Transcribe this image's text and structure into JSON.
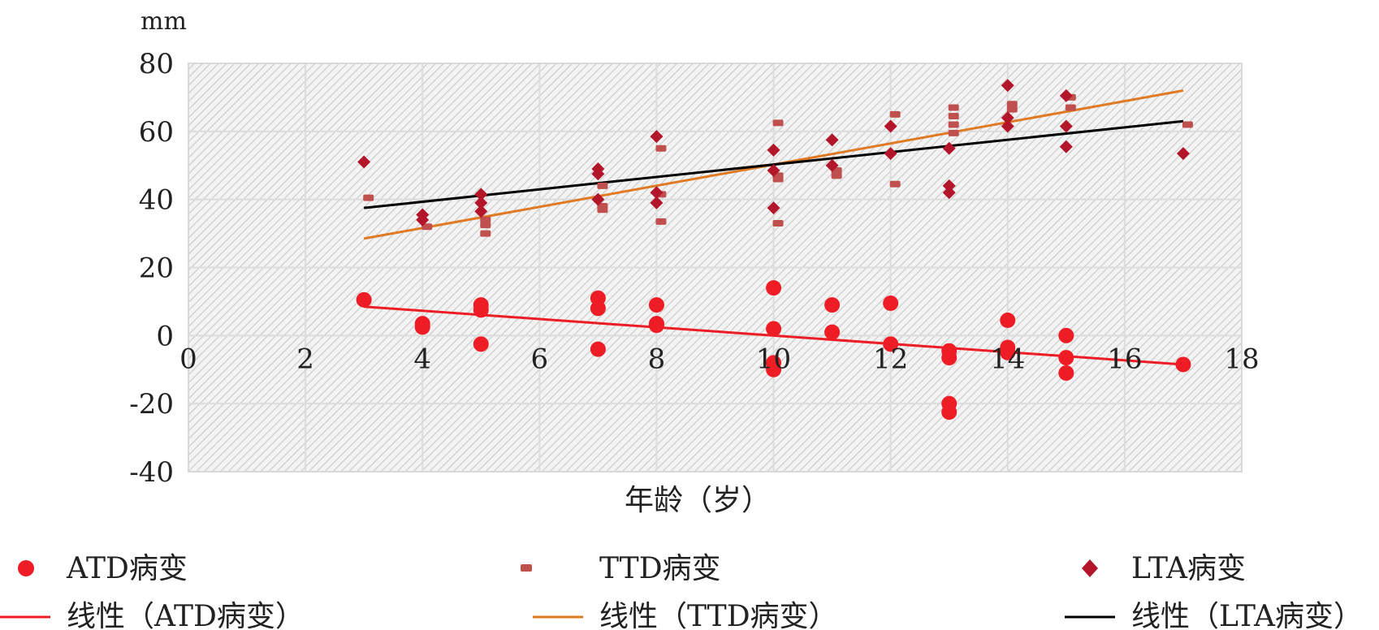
{
  "chart_data": {
    "type": "scatter",
    "title": "",
    "unit_label": "mm",
    "xlabel": "年龄（岁）",
    "ylabel": "",
    "xlim": [
      0,
      18
    ],
    "ylim": [
      -40,
      80
    ],
    "x_ticks": [
      0,
      2,
      4,
      6,
      8,
      10,
      12,
      14,
      16,
      18
    ],
    "y_ticks": [
      80,
      60,
      40,
      20,
      0,
      -20,
      -40
    ],
    "x_tick_labels": [
      "0",
      "2",
      "4",
      "6",
      "8",
      "10",
      "12",
      "14",
      "16",
      "18"
    ],
    "y_tick_labels": [
      "80",
      "60",
      "40",
      "20",
      "0",
      "-20",
      "-40"
    ],
    "grid": true,
    "legend_position": "bottom",
    "series": [
      {
        "name": "ATD病变",
        "marker": "circle",
        "color": "#ee1c25",
        "points": [
          [
            3,
            10.5
          ],
          [
            4,
            3.5
          ],
          [
            4,
            2.5
          ],
          [
            5,
            9
          ],
          [
            5,
            7.5
          ],
          [
            5,
            -2.5
          ],
          [
            7,
            11
          ],
          [
            7,
            8
          ],
          [
            7,
            -4
          ],
          [
            8,
            9
          ],
          [
            8,
            3.5
          ],
          [
            8,
            3
          ],
          [
            10,
            14
          ],
          [
            10,
            2
          ],
          [
            10,
            -8
          ],
          [
            10,
            -10
          ],
          [
            11,
            9
          ],
          [
            11,
            1
          ],
          [
            12,
            9.5
          ],
          [
            12,
            -2.5
          ],
          [
            13,
            -4.5
          ],
          [
            13,
            -6.5
          ],
          [
            13,
            -20
          ],
          [
            13,
            -22.5
          ],
          [
            14,
            4.5
          ],
          [
            14,
            -3.5
          ],
          [
            14,
            -5
          ],
          [
            15,
            0
          ],
          [
            15,
            -6.5
          ],
          [
            15,
            -11
          ],
          [
            17,
            -8.5
          ]
        ]
      },
      {
        "name": "TTD病变",
        "marker": "dash",
        "color": "#c0504d",
        "points": [
          [
            3,
            40.5
          ],
          [
            4,
            32
          ],
          [
            5,
            34
          ],
          [
            5,
            32.5
          ],
          [
            5,
            30
          ],
          [
            7,
            44
          ],
          [
            7,
            38
          ],
          [
            7,
            37
          ],
          [
            8,
            55
          ],
          [
            8,
            41.5
          ],
          [
            8,
            33.5
          ],
          [
            10,
            62.5
          ],
          [
            10,
            47
          ],
          [
            10,
            46
          ],
          [
            10,
            33
          ],
          [
            11,
            48.5
          ],
          [
            11,
            47
          ],
          [
            12,
            65
          ],
          [
            12,
            44.5
          ],
          [
            13,
            67
          ],
          [
            13,
            64.5
          ],
          [
            13,
            62
          ],
          [
            13,
            59.5
          ],
          [
            14,
            68
          ],
          [
            14,
            66.5
          ],
          [
            15,
            70
          ],
          [
            15,
            67
          ],
          [
            17,
            62
          ]
        ]
      },
      {
        "name": "LTA病变",
        "marker": "diamond",
        "color": "#b3162a",
        "points": [
          [
            3,
            51
          ],
          [
            4,
            35.5
          ],
          [
            4,
            34
          ],
          [
            5,
            41.5
          ],
          [
            5,
            39
          ],
          [
            5,
            36.5
          ],
          [
            7,
            49
          ],
          [
            7,
            47.5
          ],
          [
            7,
            40
          ],
          [
            8,
            58.5
          ],
          [
            8,
            42
          ],
          [
            8,
            39
          ],
          [
            10,
            54.5
          ],
          [
            10,
            48.5
          ],
          [
            10,
            37.5
          ],
          [
            11,
            57.5
          ],
          [
            11,
            50
          ],
          [
            12,
            61.5
          ],
          [
            12,
            53.5
          ],
          [
            13,
            55
          ],
          [
            13,
            44
          ],
          [
            13,
            42
          ],
          [
            14,
            73.5
          ],
          [
            14,
            64
          ],
          [
            14,
            61.5
          ],
          [
            15,
            70.5
          ],
          [
            15,
            61.5
          ],
          [
            15,
            55.5
          ],
          [
            17,
            53.5
          ]
        ]
      }
    ],
    "trendlines": [
      {
        "name": "线性（ATD病变）",
        "color": "#ee1c25",
        "x": [
          3,
          17
        ],
        "y": [
          8.5,
          -8.5
        ]
      },
      {
        "name": "线性（TTD病变）",
        "color": "#e07a24",
        "x": [
          3,
          17
        ],
        "y": [
          28.5,
          72
        ]
      },
      {
        "name": "线性（LTA病变）",
        "color": "#000000",
        "x": [
          3,
          17
        ],
        "y": [
          37.5,
          63
        ]
      }
    ]
  }
}
